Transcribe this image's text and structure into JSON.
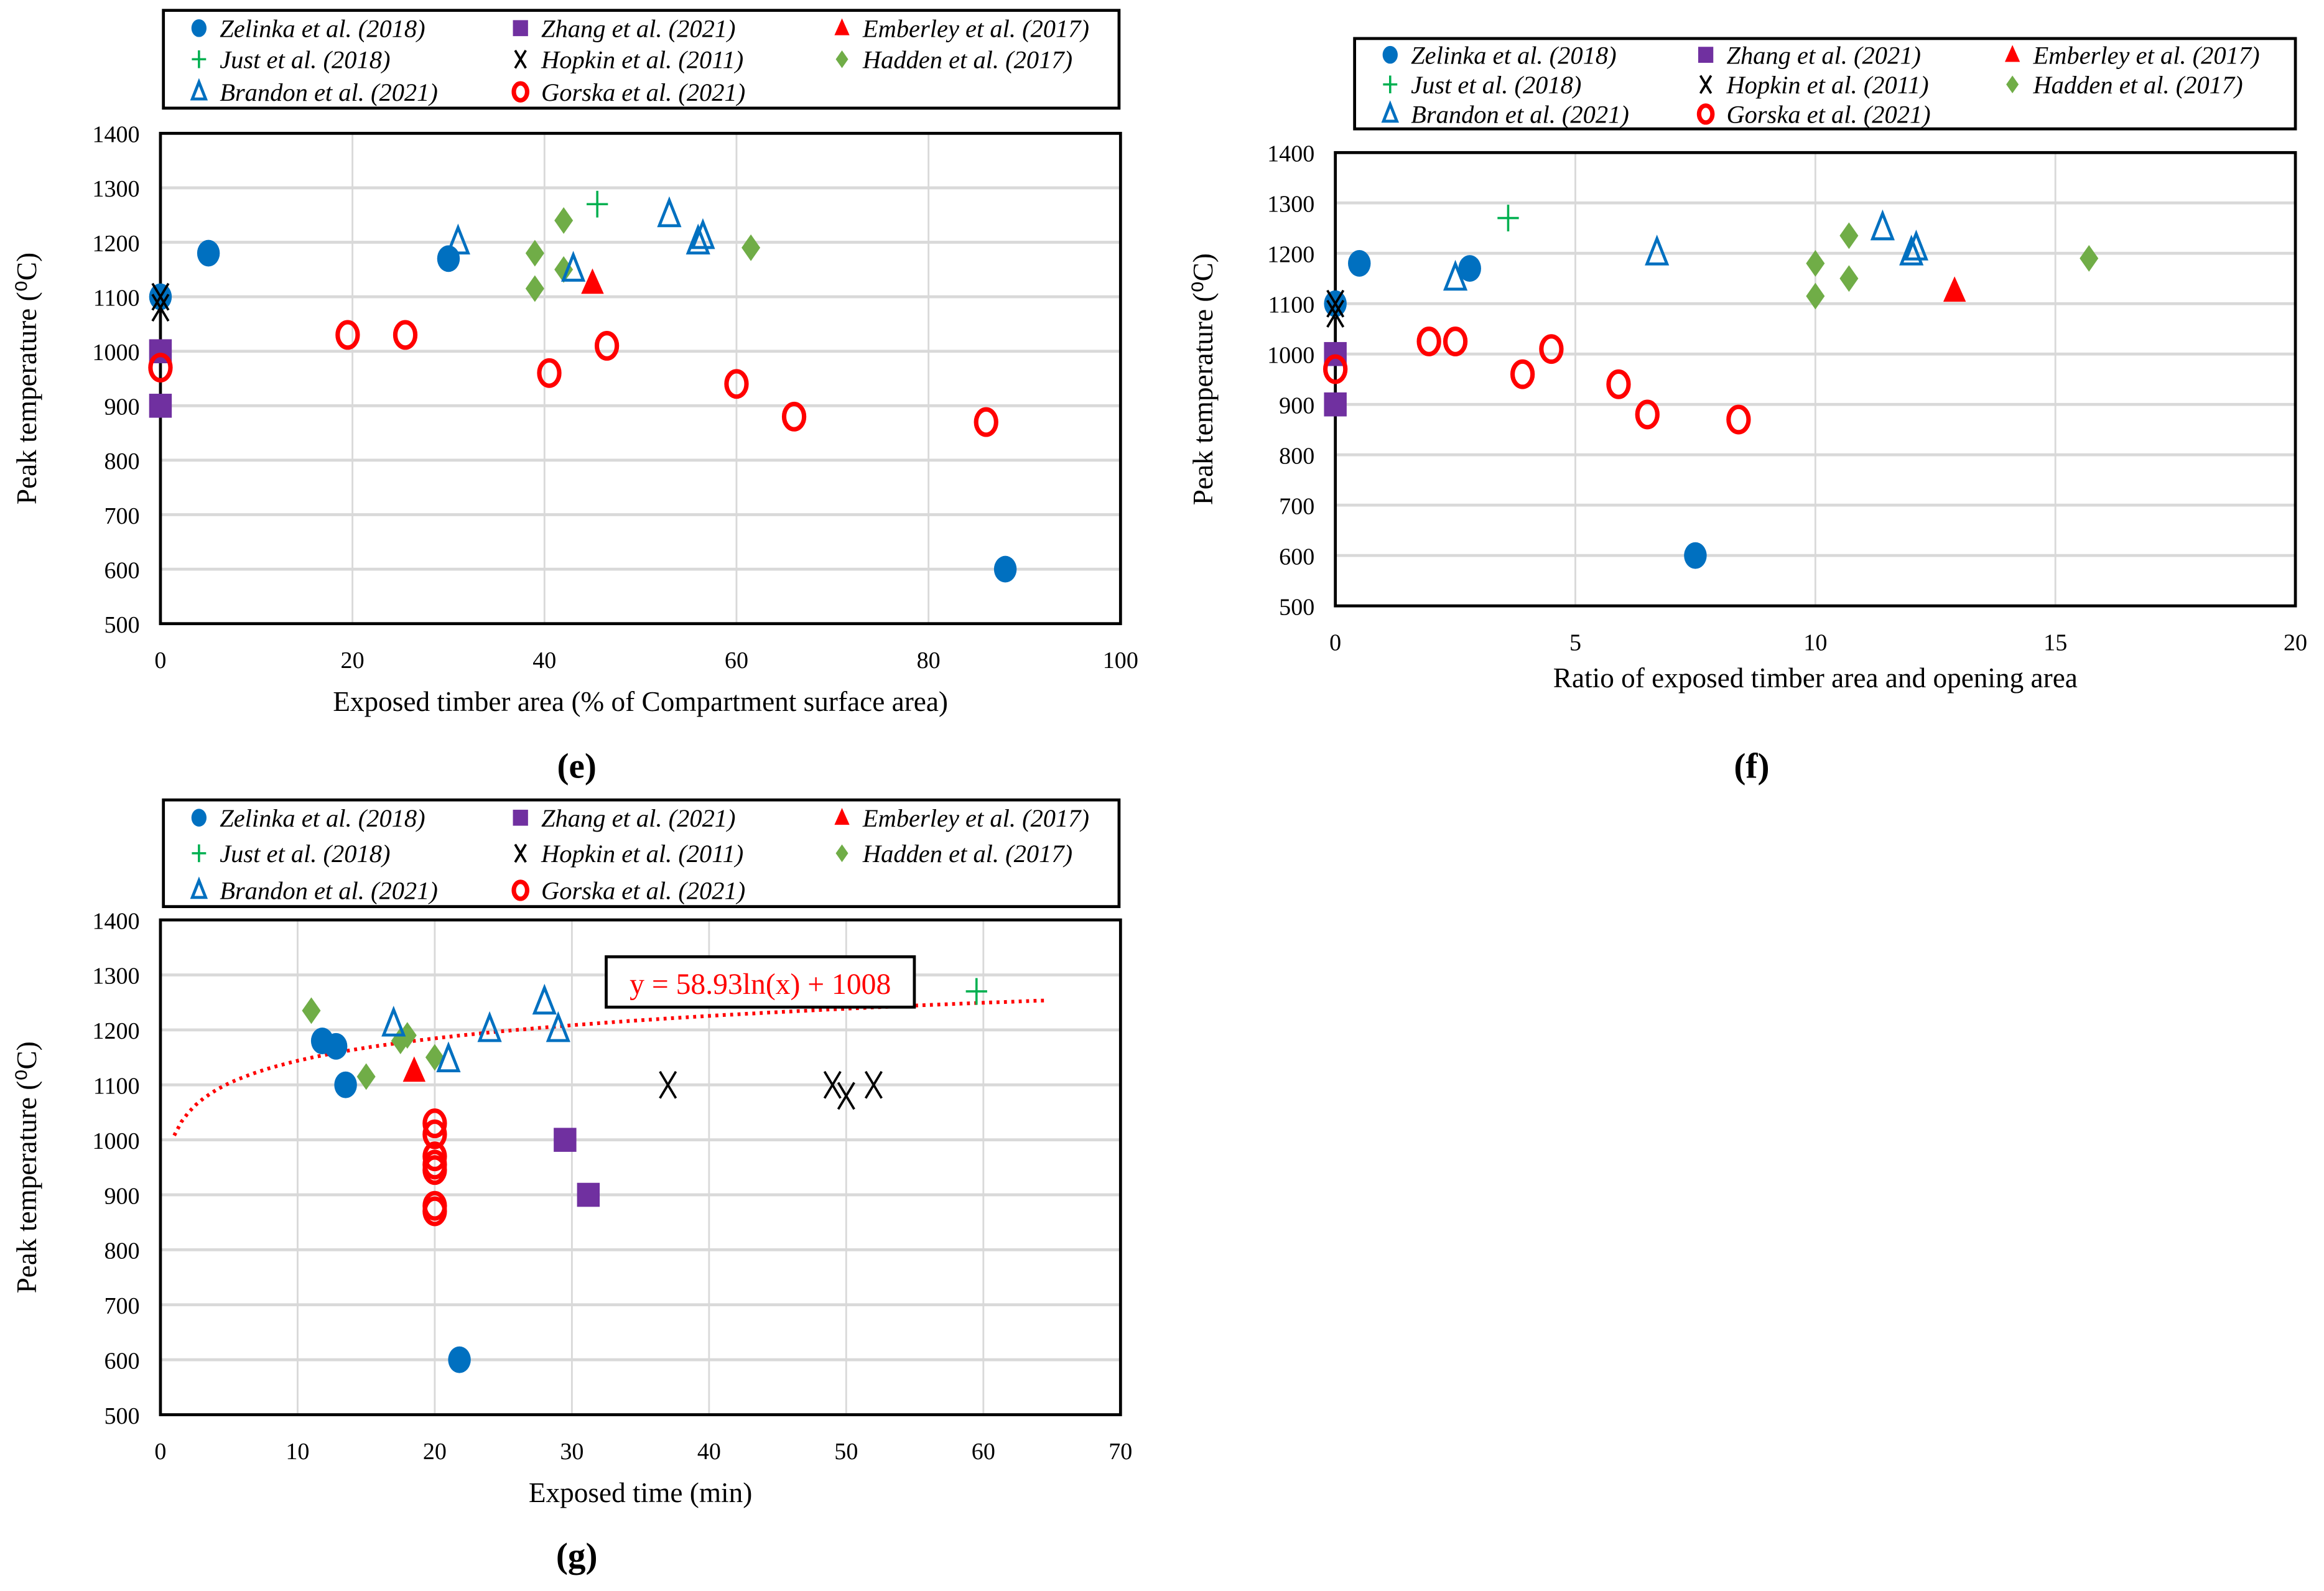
{
  "colors": {
    "zelinka": "#0070C0",
    "zhang": "#7030A0",
    "emberley": "#FF0000",
    "just": "#00B050",
    "hopkin": "#000000",
    "hadden": "#70AD47",
    "brandon": "#0070C0",
    "gorska": "#FF0000",
    "grid": "#D9D9D9"
  },
  "chart_data": [
    {
      "type": "scatter",
      "panel_label": "(e)",
      "xlabel": "Exposed timber area (% of Compartment surface area)",
      "ylabel": "Peak temperature (⁰C)",
      "xlim": [
        0,
        100
      ],
      "xticks": [
        0,
        20,
        40,
        60,
        80,
        100
      ],
      "ylim": [
        500,
        1400
      ],
      "yticks": [
        500,
        600,
        700,
        800,
        900,
        1000,
        1100,
        1200,
        1300,
        1400
      ],
      "grid": true,
      "legend_position": "top",
      "series": [
        {
          "key": "zelinka",
          "name": "Zelinka et al. (2018)",
          "marker": "circle",
          "points": [
            [
              0,
              1100
            ],
            [
              5,
              1180
            ],
            [
              30,
              1170
            ],
            [
              88,
              600
            ]
          ]
        },
        {
          "key": "zhang",
          "name": "Zhang et al. (2021)",
          "marker": "square",
          "points": [
            [
              0,
              1000
            ],
            [
              0,
              900
            ]
          ]
        },
        {
          "key": "emberley",
          "name": "Emberley et al. (2017)",
          "marker": "triangle",
          "points": [
            [
              45,
              1125
            ]
          ]
        },
        {
          "key": "just",
          "name": "Just et al. (2018)",
          "marker": "plus",
          "points": [
            [
              45.5,
              1270
            ]
          ]
        },
        {
          "key": "hopkin",
          "name": "Hopkin et al. (2011)",
          "marker": "asterisk",
          "points": [
            [
              0,
              1100
            ],
            [
              0,
              1080
            ]
          ]
        },
        {
          "key": "hadden",
          "name": "Hadden et al. (2017)",
          "marker": "diamond",
          "points": [
            [
              39,
              1180
            ],
            [
              42,
              1240
            ],
            [
              42,
              1150
            ],
            [
              39,
              1115
            ],
            [
              61.5,
              1190
            ]
          ]
        },
        {
          "key": "brandon",
          "name": "Brandon et al. (2021)",
          "marker": "triangle-open",
          "points": [
            [
              31,
              1200
            ],
            [
              43,
              1150
            ],
            [
              53,
              1250
            ],
            [
              56,
              1200
            ],
            [
              56.5,
              1210
            ]
          ]
        },
        {
          "key": "gorska",
          "name": "Gorska et al. (2021)",
          "marker": "circle-open",
          "points": [
            [
              0,
              970
            ],
            [
              19.5,
              1030
            ],
            [
              25.5,
              1030
            ],
            [
              40.5,
              960
            ],
            [
              46.5,
              1010
            ],
            [
              60,
              940
            ],
            [
              66,
              880
            ],
            [
              86,
              870
            ]
          ]
        }
      ]
    },
    {
      "type": "scatter",
      "panel_label": "(f)",
      "xlabel": "Ratio of exposed timber area and opening area",
      "ylabel": "Peak temperature (⁰C)",
      "xlim": [
        0,
        20
      ],
      "xticks": [
        0,
        5,
        10,
        15,
        20
      ],
      "ylim": [
        500,
        1400
      ],
      "yticks": [
        500,
        600,
        700,
        800,
        900,
        1000,
        1100,
        1200,
        1300,
        1400
      ],
      "grid": true,
      "legend_position": "top",
      "series": [
        {
          "key": "zelinka",
          "name": "Zelinka et al. (2018)",
          "marker": "circle",
          "points": [
            [
              0,
              1100
            ],
            [
              0.5,
              1180
            ],
            [
              2.8,
              1170
            ],
            [
              7.5,
              600
            ]
          ]
        },
        {
          "key": "zhang",
          "name": "Zhang et al. (2021)",
          "marker": "square",
          "points": [
            [
              0,
              1000
            ],
            [
              0,
              900
            ]
          ]
        },
        {
          "key": "emberley",
          "name": "Emberley et al. (2017)",
          "marker": "triangle",
          "points": [
            [
              12.9,
              1125
            ]
          ]
        },
        {
          "key": "just",
          "name": "Just et al. (2018)",
          "marker": "plus",
          "points": [
            [
              3.6,
              1270
            ]
          ]
        },
        {
          "key": "hopkin",
          "name": "Hopkin et al. (2011)",
          "marker": "asterisk",
          "points": [
            [
              0,
              1100
            ],
            [
              0,
              1080
            ]
          ]
        },
        {
          "key": "hadden",
          "name": "Hadden et al. (2017)",
          "marker": "diamond",
          "points": [
            [
              10,
              1180
            ],
            [
              10.7,
              1235
            ],
            [
              10.7,
              1150
            ],
            [
              10,
              1115
            ],
            [
              15.7,
              1190
            ]
          ]
        },
        {
          "key": "brandon",
          "name": "Brandon et al. (2021)",
          "marker": "triangle-open",
          "points": [
            [
              2.5,
              1150
            ],
            [
              6.7,
              1200
            ],
            [
              11.4,
              1250
            ],
            [
              12,
              1200
            ],
            [
              12.1,
              1210
            ]
          ]
        },
        {
          "key": "gorska",
          "name": "Gorska et al. (2021)",
          "marker": "circle-open",
          "points": [
            [
              0,
              970
            ],
            [
              1.95,
              1025
            ],
            [
              2.5,
              1025
            ],
            [
              3.9,
              960
            ],
            [
              4.5,
              1010
            ],
            [
              5.9,
              940
            ],
            [
              6.5,
              880
            ],
            [
              8.4,
              870
            ]
          ]
        }
      ]
    },
    {
      "type": "scatter",
      "panel_label": "(g)",
      "xlabel": "Exposed time (min)",
      "ylabel": "Peak temperature (⁰C)",
      "xlim": [
        0,
        70
      ],
      "xticks": [
        0,
        10,
        20,
        30,
        40,
        50,
        60,
        70
      ],
      "ylim": [
        500,
        1400
      ],
      "yticks": [
        500,
        600,
        700,
        800,
        900,
        1000,
        1100,
        1200,
        1300,
        1400
      ],
      "grid": true,
      "legend_position": "top",
      "trendline": {
        "equation": "y = 58.93ln(x) + 1008",
        "a": 58.93,
        "b": 1008,
        "x_range": [
          1,
          64.5
        ],
        "type": "logarithmic"
      },
      "series": [
        {
          "key": "zelinka",
          "name": "Zelinka et al. (2018)",
          "marker": "circle",
          "points": [
            [
              11.8,
              1180
            ],
            [
              12.8,
              1170
            ],
            [
              13.5,
              1100
            ],
            [
              21.8,
              600
            ]
          ]
        },
        {
          "key": "zhang",
          "name": "Zhang et al. (2021)",
          "marker": "square",
          "points": [
            [
              29.5,
              1000
            ],
            [
              31.2,
              900
            ]
          ]
        },
        {
          "key": "emberley",
          "name": "Emberley et al. (2017)",
          "marker": "triangle",
          "points": [
            [
              18.5,
              1125
            ]
          ]
        },
        {
          "key": "just",
          "name": "Just et al. (2018)",
          "marker": "plus",
          "points": [
            [
              59.5,
              1270
            ]
          ]
        },
        {
          "key": "hopkin",
          "name": "Hopkin et al. (2011)",
          "marker": "asterisk",
          "points": [
            [
              37,
              1100
            ],
            [
              49,
              1100
            ],
            [
              50,
              1080
            ],
            [
              52,
              1100
            ]
          ]
        },
        {
          "key": "hadden",
          "name": "Hadden et al. (2017)",
          "marker": "diamond",
          "points": [
            [
              11,
              1235
            ],
            [
              15,
              1115
            ],
            [
              17.5,
              1180
            ],
            [
              18,
              1190
            ],
            [
              20,
              1150
            ]
          ]
        },
        {
          "key": "brandon",
          "name": "Brandon et al. (2021)",
          "marker": "triangle-open",
          "points": [
            [
              17,
              1210
            ],
            [
              21,
              1145
            ],
            [
              24,
              1200
            ],
            [
              28,
              1250
            ],
            [
              29,
              1200
            ]
          ]
        },
        {
          "key": "gorska",
          "name": "Gorska et al. (2021)",
          "marker": "circle-open",
          "points": [
            [
              20,
              1030
            ],
            [
              20,
              1010
            ],
            [
              20,
              970
            ],
            [
              20,
              955
            ],
            [
              20,
              945
            ],
            [
              20,
              880
            ],
            [
              20,
              870
            ]
          ]
        }
      ]
    }
  ]
}
